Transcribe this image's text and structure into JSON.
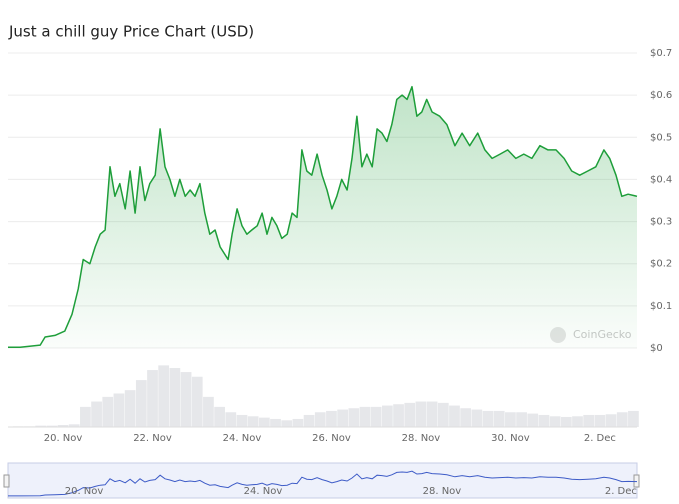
{
  "chart_data": [
    {
      "type": "line",
      "title": "Just a chill guy Price Chart (USD)",
      "color": "#1e9e3a",
      "grid": true,
      "watermark": "CoinGecko",
      "xlim": [
        18.77,
        32.83
      ],
      "xticks": [
        {
          "value": 20,
          "label": "20. Nov"
        },
        {
          "value": 22,
          "label": "22. Nov"
        },
        {
          "value": 24,
          "label": "24. Nov"
        },
        {
          "value": 26,
          "label": "26. Nov"
        },
        {
          "value": 28,
          "label": "28. Nov"
        },
        {
          "value": 30,
          "label": "30. Nov"
        },
        {
          "value": 32,
          "label": "2. Dec"
        }
      ],
      "ylim": [
        0,
        0.7
      ],
      "yticks": [
        {
          "value": 0,
          "label": "$0"
        },
        {
          "value": 0.1,
          "label": "$0.1"
        },
        {
          "value": 0.2,
          "label": "$0.2"
        },
        {
          "value": 0.3,
          "label": "$0.3"
        },
        {
          "value": 0.4,
          "label": "$0.4"
        },
        {
          "value": 0.5,
          "label": "$0.5"
        },
        {
          "value": 0.6,
          "label": "$0.6"
        },
        {
          "value": 0.7,
          "label": "$0.7"
        }
      ],
      "x": [
        18.77,
        19.04,
        19.49,
        19.6,
        19.82,
        20.04,
        20.2,
        20.34,
        20.45,
        20.6,
        20.72,
        20.83,
        20.94,
        21.05,
        21.16,
        21.27,
        21.39,
        21.5,
        21.61,
        21.72,
        21.83,
        21.94,
        22.06,
        22.17,
        22.28,
        22.39,
        22.5,
        22.61,
        22.73,
        22.84,
        22.95,
        23.06,
        23.17,
        23.28,
        23.4,
        23.51,
        23.69,
        23.78,
        23.89,
        24.0,
        24.11,
        24.22,
        24.34,
        24.45,
        24.56,
        24.67,
        24.78,
        24.89,
        25.01,
        25.12,
        25.23,
        25.34,
        25.45,
        25.56,
        25.68,
        25.79,
        25.9,
        26.01,
        26.12,
        26.23,
        26.35,
        26.46,
        26.57,
        26.68,
        26.79,
        26.91,
        27.02,
        27.13,
        27.24,
        27.35,
        27.46,
        27.58,
        27.69,
        27.8,
        27.91,
        28.02,
        28.13,
        28.25,
        28.42,
        28.58,
        28.76,
        28.92,
        29.09,
        29.27,
        29.43,
        29.59,
        29.77,
        29.94,
        30.12,
        30.3,
        30.48,
        30.66,
        30.84,
        31.02,
        31.2,
        31.37,
        31.55,
        31.73,
        31.91,
        32.09,
        32.22,
        32.36,
        32.49,
        32.63,
        32.83
      ],
      "values": [
        0.002,
        0.002,
        0.007,
        0.026,
        0.03,
        0.04,
        0.08,
        0.14,
        0.21,
        0.2,
        0.24,
        0.27,
        0.28,
        0.43,
        0.36,
        0.39,
        0.33,
        0.42,
        0.32,
        0.43,
        0.35,
        0.39,
        0.41,
        0.52,
        0.43,
        0.4,
        0.36,
        0.4,
        0.36,
        0.375,
        0.36,
        0.39,
        0.32,
        0.27,
        0.28,
        0.24,
        0.21,
        0.27,
        0.33,
        0.29,
        0.27,
        0.28,
        0.29,
        0.32,
        0.27,
        0.31,
        0.29,
        0.26,
        0.27,
        0.32,
        0.31,
        0.47,
        0.42,
        0.41,
        0.46,
        0.41,
        0.375,
        0.33,
        0.36,
        0.4,
        0.375,
        0.45,
        0.55,
        0.43,
        0.46,
        0.43,
        0.52,
        0.51,
        0.49,
        0.53,
        0.59,
        0.6,
        0.59,
        0.62,
        0.55,
        0.56,
        0.59,
        0.56,
        0.55,
        0.53,
        0.48,
        0.51,
        0.48,
        0.51,
        0.47,
        0.45,
        0.46,
        0.47,
        0.45,
        0.46,
        0.45,
        0.48,
        0.47,
        0.47,
        0.45,
        0.42,
        0.41,
        0.42,
        0.43,
        0.47,
        0.45,
        0.41,
        0.36,
        0.365,
        0.36
      ],
      "navigator": {
        "color": "#3d5bc7",
        "xticks": [
          {
            "value": 20,
            "label": "20. Nov"
          },
          {
            "value": 24,
            "label": "24. Nov"
          },
          {
            "value": 28,
            "label": "28. Nov"
          },
          {
            "value": 32,
            "label": "2. Dec"
          }
        ]
      }
    },
    {
      "type": "bar",
      "color": "#e6e7ea",
      "xlim": [
        18.77,
        32.83
      ],
      "ylim": [
        0,
        100
      ],
      "x": [
        19,
        19.25,
        19.5,
        19.75,
        20,
        20.25,
        20.5,
        20.75,
        21,
        21.25,
        21.5,
        21.75,
        22,
        22.25,
        22.5,
        22.75,
        23,
        23.25,
        23.5,
        23.75,
        24,
        24.25,
        24.5,
        24.75,
        25,
        25.25,
        25.5,
        25.75,
        26,
        26.25,
        26.5,
        26.75,
        27,
        27.25,
        27.5,
        27.75,
        28,
        28.25,
        28.5,
        28.75,
        29,
        29.25,
        29.5,
        29.75,
        30,
        30.25,
        30.5,
        30.75,
        31,
        31.25,
        31.5,
        31.75,
        32,
        32.25,
        32.5,
        32.75
      ],
      "values": [
        1,
        1,
        2,
        2,
        3,
        4,
        30,
        38,
        45,
        50,
        55,
        70,
        85,
        92,
        88,
        82,
        75,
        45,
        30,
        22,
        18,
        16,
        14,
        12,
        10,
        12,
        18,
        22,
        24,
        26,
        28,
        30,
        30,
        32,
        34,
        36,
        38,
        38,
        36,
        32,
        28,
        26,
        24,
        24,
        22,
        22,
        20,
        18,
        16,
        15,
        16,
        18,
        18,
        19,
        22,
        24
      ]
    }
  ]
}
